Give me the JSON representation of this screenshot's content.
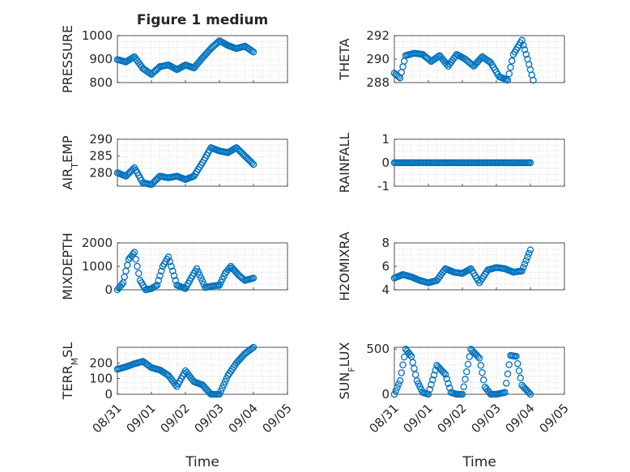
{
  "figure": {
    "title": "Figure 1 medium",
    "time_axis_label": "Time",
    "marker_color": "#0072BD",
    "marker_type": "open circle",
    "grid": "dotted minor and major"
  },
  "chart_data": [
    {
      "type": "scatter",
      "ylabel": "PRESSURE",
      "title": "Figure 1 medium",
      "ylim": [
        800,
        1000
      ],
      "yticks": [
        "800",
        "900",
        "1000"
      ],
      "xticks": [],
      "xlabel": "",
      "x": [
        "08/31 00:00",
        "08/31 06:00",
        "08/31 12:00",
        "08/31 18:00",
        "09/01 00:00",
        "09/01 06:00",
        "09/01 12:00",
        "09/01 18:00",
        "09/02 00:00",
        "09/02 06:00",
        "09/02 12:00",
        "09/02 18:00",
        "09/03 00:00",
        "09/03 06:00",
        "09/03 12:00",
        "09/03 18:00",
        "09/04 00:00"
      ],
      "values": [
        898,
        888,
        910,
        860,
        835,
        868,
        875,
        855,
        875,
        862,
        905,
        945,
        978,
        958,
        945,
        955,
        930
      ]
    },
    {
      "type": "scatter",
      "ylabel": "THETA",
      "ylim": [
        288,
        292
      ],
      "yticks": [
        "288",
        "290",
        "292"
      ],
      "xticks": [],
      "xlabel": "",
      "x": [
        "08/31 00:00",
        "08/31 04:00",
        "08/31 08:00",
        "08/31 14:00",
        "08/31 20:00",
        "09/01 02:00",
        "09/01 08:00",
        "09/01 14:00",
        "09/01 20:00",
        "09/02 02:00",
        "09/02 08:00",
        "09/02 14:00",
        "09/02 20:00",
        "09/03 02:00",
        "09/03 08:00",
        "09/03 12:00",
        "09/03 18:00",
        "09/03 22:00",
        "09/04 02:00"
      ],
      "values": [
        288.8,
        288.4,
        290.3,
        290.5,
        290.4,
        289.8,
        290.3,
        289.4,
        290.4,
        290.0,
        289.4,
        290.2,
        289.7,
        288.5,
        288.2,
        290.4,
        291.6,
        290.0,
        288.2
      ]
    },
    {
      "type": "scatter",
      "ylabel": "AIR_TEMP",
      "ylim": [
        276,
        290
      ],
      "yticks": [
        "280",
        "285",
        "290"
      ],
      "xticks": [],
      "xlabel": "",
      "x": [
        "08/31 00:00",
        "08/31 06:00",
        "08/31 12:00",
        "08/31 18:00",
        "09/01 00:00",
        "09/01 06:00",
        "09/01 12:00",
        "09/01 18:00",
        "09/02 00:00",
        "09/02 06:00",
        "09/02 12:00",
        "09/02 18:00",
        "09/03 00:00",
        "09/03 06:00",
        "09/03 12:00",
        "09/03 18:00",
        "09/04 00:00"
      ],
      "values": [
        280,
        279,
        281.5,
        277,
        276.5,
        279,
        278.5,
        279,
        278,
        279,
        283,
        287.5,
        286.5,
        286,
        287.5,
        285,
        282.5
      ]
    },
    {
      "type": "scatter",
      "ylabel": "RAINFALL",
      "ylim": [
        -1,
        1
      ],
      "yticks": [
        "-1",
        "0",
        "1"
      ],
      "xticks": [],
      "xlabel": "",
      "x": [
        "08/31 00:00",
        "09/04 00:00"
      ],
      "values": [
        0,
        0
      ]
    },
    {
      "type": "scatter",
      "ylabel": "MIXDEPTH",
      "ylim": [
        0,
        2000
      ],
      "yticks": [
        "0",
        "1000",
        "2000"
      ],
      "xticks": [],
      "xlabel": "",
      "x": [
        "08/31 00:00",
        "08/31 04:00",
        "08/31 08:00",
        "08/31 12:00",
        "08/31 16:00",
        "08/31 20:00",
        "09/01 00:00",
        "09/01 04:00",
        "09/01 08:00",
        "09/01 12:00",
        "09/01 18:00",
        "09/02 00:00",
        "09/02 04:00",
        "09/02 08:00",
        "09/02 14:00",
        "09/02 18:00",
        "09/03 00:00",
        "09/03 04:00",
        "09/03 08:00",
        "09/03 14:00",
        "09/03 18:00",
        "09/04 00:00"
      ],
      "values": [
        0,
        300,
        1300,
        1600,
        400,
        0,
        50,
        200,
        1000,
        1400,
        200,
        50,
        500,
        900,
        100,
        150,
        200,
        700,
        1000,
        600,
        400,
        500
      ]
    },
    {
      "type": "scatter",
      "ylabel": "H2OMIXRA",
      "ylim": [
        4,
        8
      ],
      "yticks": [
        "4",
        "6",
        "8"
      ],
      "xticks": [],
      "xlabel": "",
      "x": [
        "08/31 00:00",
        "08/31 06:00",
        "08/31 12:00",
        "08/31 18:00",
        "09/01 00:00",
        "09/01 06:00",
        "09/01 12:00",
        "09/01 18:00",
        "09/02 00:00",
        "09/02 06:00",
        "09/02 12:00",
        "09/02 18:00",
        "09/03 00:00",
        "09/03 06:00",
        "09/03 12:00",
        "09/03 18:00",
        "09/04 00:00"
      ],
      "values": [
        5.0,
        5.3,
        5.1,
        4.8,
        4.6,
        4.8,
        5.8,
        5.5,
        5.4,
        5.8,
        4.6,
        5.7,
        5.9,
        5.8,
        5.5,
        5.6,
        7.4
      ]
    },
    {
      "type": "scatter",
      "ylabel": "TERR_MSL",
      "ylim": [
        0,
        300
      ],
      "yticks": [
        "0",
        "100",
        "200"
      ],
      "xticks": [
        "08/31",
        "09/01",
        "09/02",
        "09/03",
        "09/04",
        "09/05"
      ],
      "xlabel": "Time",
      "x": [
        "08/31 00:00",
        "08/31 06:00",
        "08/31 12:00",
        "08/31 18:00",
        "09/01 00:00",
        "09/01 06:00",
        "09/01 12:00",
        "09/01 18:00",
        "09/02 00:00",
        "09/02 06:00",
        "09/02 12:00",
        "09/02 18:00",
        "09/03 00:00",
        "09/03 06:00",
        "09/03 12:00",
        "09/03 18:00",
        "09/04 00:00"
      ],
      "values": [
        160,
        175,
        195,
        210,
        170,
        155,
        120,
        50,
        150,
        80,
        60,
        0,
        0,
        120,
        200,
        260,
        300
      ]
    },
    {
      "type": "scatter",
      "ylabel": "SUN_FLUX",
      "ylim": [
        0,
        520
      ],
      "yticks": [
        "0",
        "500"
      ],
      "xticks": [
        "08/31",
        "09/01",
        "09/02",
        "09/03",
        "09/04",
        "09/05"
      ],
      "xlabel": "Time",
      "x": [
        "08/31 00:00",
        "08/31 04:00",
        "08/31 08:00",
        "08/31 12:00",
        "08/31 16:00",
        "08/31 20:00",
        "09/01 00:00",
        "09/01 06:00",
        "09/01 12:00",
        "09/01 16:00",
        "09/01 20:00",
        "09/02 00:00",
        "09/02 06:00",
        "09/02 12:00",
        "09/02 16:00",
        "09/02 20:00",
        "09/03 00:00",
        "09/03 06:00",
        "09/03 10:00",
        "09/03 14:00",
        "09/03 18:00",
        "09/04 00:00"
      ],
      "values": [
        0,
        150,
        500,
        420,
        150,
        20,
        0,
        320,
        220,
        20,
        0,
        0,
        500,
        400,
        80,
        0,
        0,
        20,
        430,
        420,
        100,
        0
      ]
    }
  ]
}
